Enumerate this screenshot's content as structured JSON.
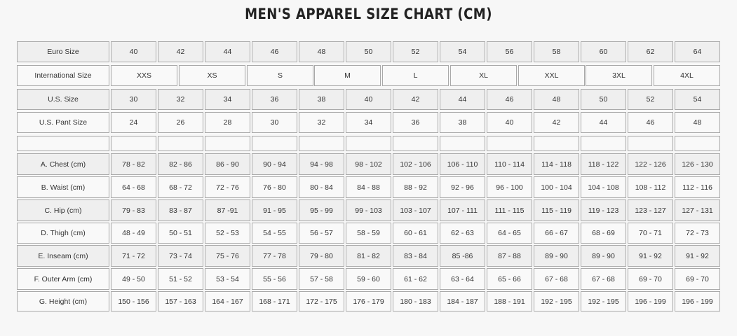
{
  "title": "MEN'S APPAREL SIZE CHART (CM)",
  "rows": [
    {
      "label": "Euro Size",
      "values": [
        "40",
        "42",
        "44",
        "46",
        "48",
        "50",
        "52",
        "54",
        "56",
        "58",
        "60",
        "62",
        "64"
      ]
    },
    {
      "label": "International Size",
      "values": [
        "XXS",
        "XS",
        "S",
        "M",
        "L",
        "XL",
        "XXL",
        "3XL",
        "4XL"
      ]
    },
    {
      "label": "U.S. Size",
      "values": [
        "30",
        "32",
        "34",
        "36",
        "38",
        "40",
        "42",
        "44",
        "46",
        "48",
        "50",
        "52",
        "54"
      ]
    },
    {
      "label": "U.S. Pant Size",
      "values": [
        "24",
        "26",
        "28",
        "30",
        "32",
        "34",
        "36",
        "38",
        "40",
        "42",
        "44",
        "46",
        "48"
      ]
    },
    {
      "label": "",
      "values": [
        "",
        "",
        "",
        "",
        "",
        "",
        "",
        "",
        "",
        "",
        "",
        "",
        ""
      ]
    },
    {
      "label": "A. Chest (cm)",
      "values": [
        "78 - 82",
        "82 - 86",
        "86 - 90",
        "90 - 94",
        "94 - 98",
        "98 - 102",
        "102 - 106",
        "106 - 110",
        "110 - 114",
        "114 - 118",
        "118 - 122",
        "122 - 126",
        "126 - 130"
      ]
    },
    {
      "label": "B. Waist (cm)",
      "values": [
        "64 - 68",
        "68 - 72",
        "72 - 76",
        "76 - 80",
        "80 - 84",
        "84 - 88",
        "88 - 92",
        "92 - 96",
        "96 - 100",
        "100 - 104",
        "104 - 108",
        "108 - 112",
        "112 - 116"
      ]
    },
    {
      "label": "C. Hip (cm)",
      "values": [
        "79 - 83",
        "83 - 87",
        "87 -91",
        "91 - 95",
        "95 - 99",
        "99 - 103",
        "103 - 107",
        "107 - 111",
        "111 - 115",
        "115 - 119",
        "119 - 123",
        "123 - 127",
        "127 - 131"
      ]
    },
    {
      "label": "D. Thigh (cm)",
      "values": [
        "48 - 49",
        "50 - 51",
        "52 - 53",
        "54 - 55",
        "56 - 57",
        "58 - 59",
        "60 - 61",
        "62 - 63",
        "64 - 65",
        "66 - 67",
        "68 - 69",
        "70 - 71",
        "72 - 73"
      ]
    },
    {
      "label": "E. Inseam (cm)",
      "values": [
        "71 - 72",
        "73 - 74",
        "75 - 76",
        "77 - 78",
        "79 - 80",
        "81 - 82",
        "83 - 84",
        "85 -86",
        "87 - 88",
        "89 - 90",
        "89 - 90",
        "91 - 92",
        "91 - 92"
      ]
    },
    {
      "label": "F. Outer Arm (cm)",
      "values": [
        "49 - 50",
        "51 - 52",
        "53 - 54",
        "55 - 56",
        "57 - 58",
        "59 - 60",
        "61 - 62",
        "63 - 64",
        "65 - 66",
        "67 - 68",
        "67 - 68",
        "69 - 70",
        "69 - 70"
      ]
    },
    {
      "label": "G. Height (cm)",
      "values": [
        "150 - 156",
        "157 - 163",
        "164 - 167",
        "168 - 171",
        "172 - 175",
        "176 - 179",
        "180 - 183",
        "184 - 187",
        "188 - 191",
        "192 - 195",
        "192 - 195",
        "196 - 199",
        "196 - 199"
      ]
    }
  ]
}
